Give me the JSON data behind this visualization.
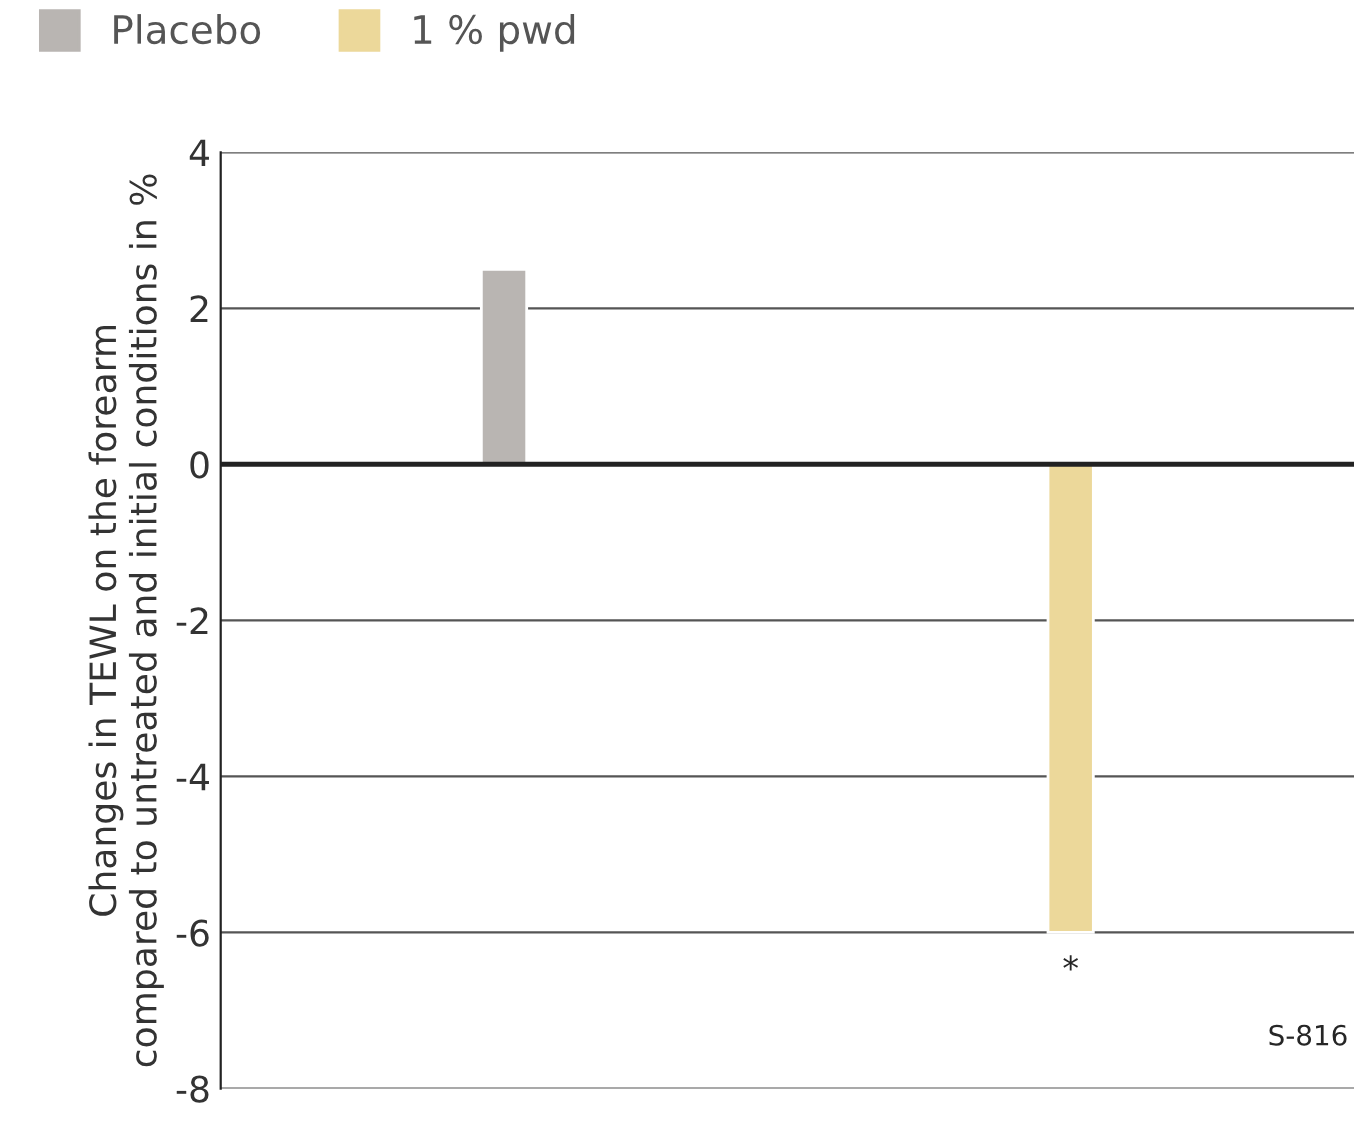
{
  "chart_data": {
    "type": "bar",
    "ylabel": "Changes in TEWL on the forearm\ncompared to untreated and initial conditions in %",
    "categories": [
      null,
      null
    ],
    "series": [
      {
        "name": "Placebo",
        "color": "#b9b5b2",
        "values": [
          2.5,
          null
        ]
      },
      {
        "name": "1 % pwd",
        "color": "#ecd89a",
        "values": [
          null,
          -6.0
        ]
      }
    ],
    "ylim": [
      -8,
      4
    ],
    "yticks": [
      -8,
      -6,
      -4,
      -2,
      0,
      2,
      4
    ],
    "grid": "y",
    "legend": "top left",
    "annotations": [
      "*",
      "S-816"
    ]
  }
}
